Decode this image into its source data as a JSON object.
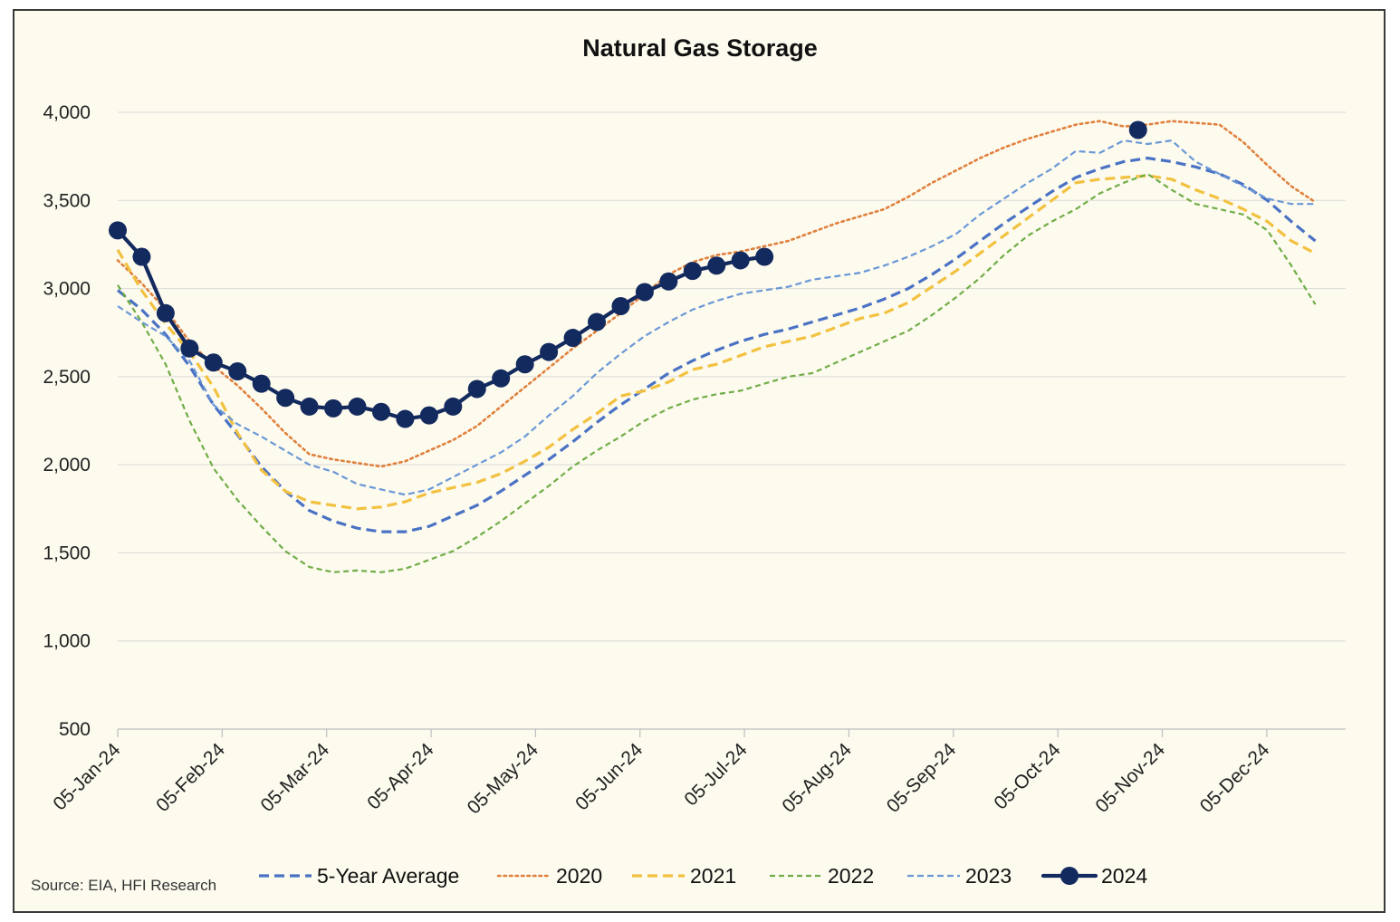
{
  "chart_data": {
    "type": "line",
    "title": "Natural Gas Storage",
    "source": "Source: EIA, HFI Research",
    "xlabel": "",
    "ylabel": "",
    "ylim": [
      500,
      4000
    ],
    "y_ticks": [
      500,
      1000,
      1500,
      2000,
      2500,
      3000,
      3500,
      4000
    ],
    "y_tick_labels": [
      "500",
      "1,000",
      "1,500",
      "2,000",
      "2,500",
      "3,000",
      "3,500",
      "4,000"
    ],
    "x_ticks": [
      "05-Jan-24",
      "05-Feb-24",
      "05-Mar-24",
      "05-Apr-24",
      "05-May-24",
      "05-Jun-24",
      "05-Jul-24",
      "05-Aug-24",
      "05-Sep-24",
      "05-Oct-24",
      "05-Nov-24",
      "05-Dec-24"
    ],
    "x_week_count": 52,
    "grid": true,
    "legend_position": "bottom",
    "series": [
      {
        "name": "5-Year Average",
        "color": "#4a72c4",
        "style": "dashed",
        "values": [
          2990,
          2880,
          2740,
          2560,
          2340,
          2170,
          1990,
          1850,
          1740,
          1680,
          1640,
          1620,
          1620,
          1650,
          1710,
          1770,
          1850,
          1940,
          2030,
          2130,
          2240,
          2340,
          2430,
          2520,
          2590,
          2650,
          2700,
          2740,
          2770,
          2810,
          2850,
          2890,
          2940,
          3000,
          3080,
          3170,
          3270,
          3370,
          3460,
          3550,
          3630,
          3680,
          3720,
          3740,
          3720,
          3690,
          3650,
          3590,
          3500,
          3380,
          3270
        ]
      },
      {
        "name": "2020",
        "color": "#e0803c",
        "style": "dotted",
        "values": [
          3160,
          3030,
          2880,
          2700,
          2560,
          2450,
          2320,
          2180,
          2060,
          2030,
          2010,
          1990,
          2020,
          2080,
          2140,
          2220,
          2330,
          2440,
          2550,
          2660,
          2760,
          2860,
          2970,
          3080,
          3150,
          3190,
          3210,
          3240,
          3270,
          3320,
          3370,
          3410,
          3450,
          3520,
          3600,
          3670,
          3740,
          3800,
          3850,
          3890,
          3930,
          3950,
          3920,
          3930,
          3950,
          3940,
          3930,
          3830,
          3700,
          3580,
          3490
        ]
      },
      {
        "name": "2021",
        "color": "#f2c13f",
        "style": "dashed",
        "values": [
          3220,
          2990,
          2800,
          2640,
          2440,
          2180,
          1970,
          1850,
          1790,
          1770,
          1750,
          1760,
          1790,
          1840,
          1870,
          1900,
          1950,
          2020,
          2100,
          2200,
          2290,
          2390,
          2420,
          2470,
          2540,
          2570,
          2620,
          2670,
          2700,
          2730,
          2780,
          2830,
          2860,
          2920,
          3010,
          3100,
          3200,
          3300,
          3400,
          3500,
          3600,
          3620,
          3630,
          3640,
          3620,
          3560,
          3510,
          3450,
          3380,
          3270,
          3200
        ]
      },
      {
        "name": "2022",
        "color": "#70ad47",
        "style": "dotted-dash",
        "values": [
          3020,
          2810,
          2570,
          2250,
          1980,
          1800,
          1650,
          1510,
          1420,
          1390,
          1400,
          1390,
          1410,
          1460,
          1510,
          1590,
          1680,
          1780,
          1880,
          1990,
          2080,
          2160,
          2250,
          2320,
          2370,
          2400,
          2420,
          2460,
          2500,
          2520,
          2580,
          2640,
          2700,
          2760,
          2850,
          2950,
          3060,
          3190,
          3300,
          3380,
          3450,
          3540,
          3600,
          3650,
          3560,
          3480,
          3450,
          3420,
          3330,
          3130,
          2910
        ]
      },
      {
        "name": "2023",
        "color": "#6a98d6",
        "style": "dashed-fine",
        "values": [
          2900,
          2810,
          2730,
          2590,
          2340,
          2230,
          2160,
          2080,
          2000,
          1960,
          1890,
          1860,
          1830,
          1860,
          1930,
          2000,
          2070,
          2160,
          2280,
          2390,
          2520,
          2630,
          2730,
          2810,
          2880,
          2930,
          2970,
          2990,
          3010,
          3050,
          3070,
          3090,
          3130,
          3180,
          3240,
          3310,
          3420,
          3510,
          3600,
          3680,
          3780,
          3770,
          3840,
          3820,
          3840,
          3720,
          3650,
          3580,
          3510,
          3480,
          3480
        ]
      },
      {
        "name": "2024",
        "color": "#132a5e",
        "style": "solid-markers",
        "values": [
          3330,
          3180,
          2860,
          2660,
          2580,
          2530,
          2460,
          2380,
          2330,
          2320,
          2330,
          2300,
          2260,
          2280,
          2330,
          2430,
          2490,
          2570,
          2640,
          2720,
          2810,
          2900,
          2980,
          3040,
          3100,
          3130,
          3160,
          3180
        ],
        "extra_point": {
          "week_index": 42.6,
          "value": 3900
        }
      }
    ]
  }
}
